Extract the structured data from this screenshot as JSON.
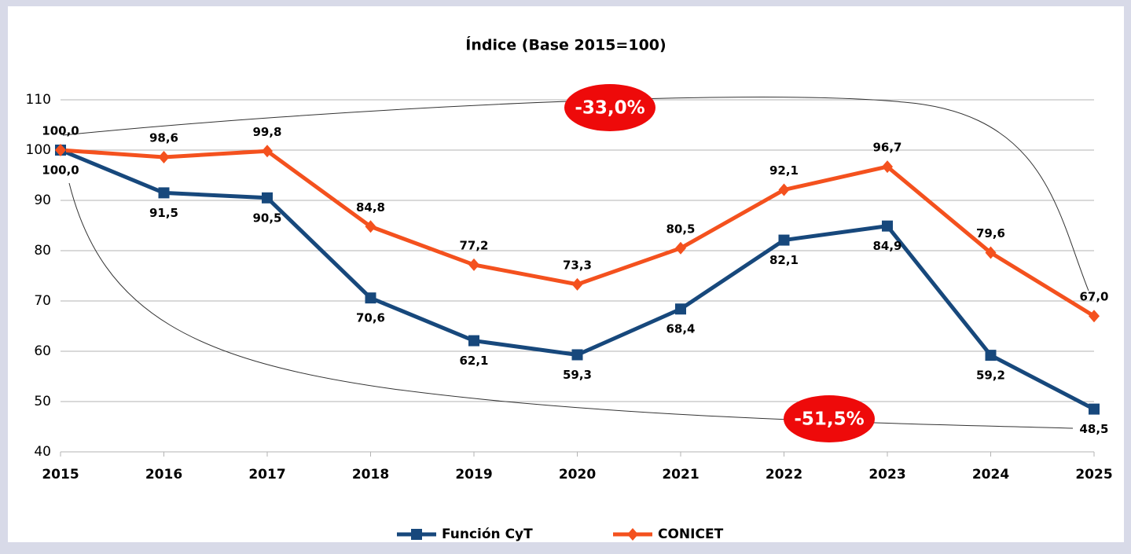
{
  "chart_data": {
    "type": "line",
    "title": "Índice (Base 2015=100)",
    "categories": [
      "2015",
      "2016",
      "2017",
      "2018",
      "2019",
      "2020",
      "2021",
      "2022",
      "2023",
      "2024",
      "2025"
    ],
    "series": [
      {
        "name": "Función CyT",
        "color": "#17487c",
        "marker": "square",
        "values": [
          100.0,
          91.5,
          90.5,
          70.6,
          62.1,
          59.3,
          68.4,
          82.1,
          84.9,
          59.2,
          48.5
        ],
        "value_labels": [
          "100,0",
          "91,5",
          "90,5",
          "70,6",
          "62,1",
          "59,3",
          "68,4",
          "82,1",
          "84,9",
          "59,2",
          "48,5"
        ]
      },
      {
        "name": "CONICET",
        "color": "#f4511e",
        "marker": "diamond",
        "values": [
          100.0,
          98.6,
          99.8,
          84.8,
          77.2,
          73.3,
          80.5,
          92.1,
          96.7,
          79.6,
          67.0
        ],
        "value_labels": [
          "100,0",
          "98,6",
          "99,8",
          "84,8",
          "77,2",
          "73,3",
          "80,5",
          "92,1",
          "96,7",
          "79,6",
          "67,0"
        ]
      }
    ],
    "ylim": [
      40,
      110
    ],
    "yticks": [
      40,
      50,
      60,
      70,
      80,
      90,
      100,
      110
    ],
    "grid": true,
    "legend": "bottom",
    "annotations": [
      "-33,0%",
      "-51,5%"
    ]
  }
}
